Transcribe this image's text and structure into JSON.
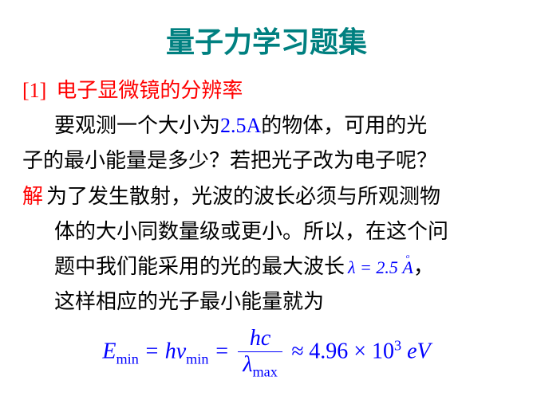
{
  "title": {
    "text": "量子力学习题集",
    "color": "#008080",
    "fontsize": 36,
    "weight": "bold"
  },
  "problem": {
    "label": "[1]",
    "label_color": "#ff0000",
    "heading": "电子显微镜的分辨率",
    "heading_color": "#ff0000",
    "body_prefix": "要观测一个大小为",
    "value": "2.5A",
    "value_color": "#0000ff",
    "body_suffix": "的物体，可用的光",
    "body_line2": "子的最小能量是多少？若把光子改为电子呢？",
    "body_color": "#000000",
    "fontsize": 26
  },
  "solution": {
    "label": "解",
    "label_color": "#ff0000",
    "line1a": "为了发生散射，光波的波长必须与所观测物",
    "line1b": "体的大小同数量级或更小。所以，在这个问",
    "line1c_pre": "题中我们能采用的光的最大波长",
    "lambda_eq": "λ = 2.5 A",
    "lambda_eq_color": "#0000ff",
    "line1c_post": "，",
    "line1d": "这样相应的光子最小能量就为",
    "body_color": "#000000",
    "fontsize": 26
  },
  "formula": {
    "color": "#0000ff",
    "fontsize": 28,
    "E": "E",
    "min": "min",
    "eq": " = ",
    "h": "h",
    "nu": "ν",
    "hc": "hc",
    "lambda": "λ",
    "max": "max",
    "approx": " ≈ ",
    "value": "4.96",
    "times": "×",
    "exp_base": "10",
    "exp": "3",
    "unit": "eV"
  }
}
